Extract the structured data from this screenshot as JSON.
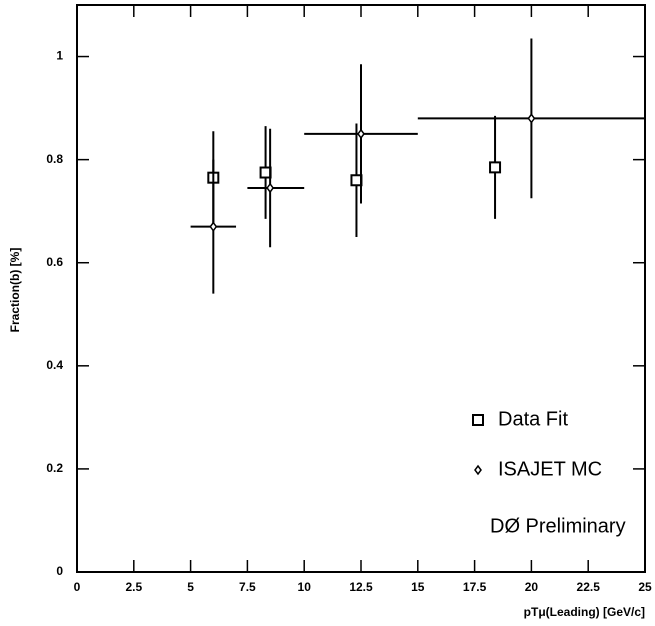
{
  "chart_data": {
    "type": "scatter",
    "xlabel": "pTμ(Leading) [GeV/c]",
    "ylabel": "Fraction(b) [%]",
    "annotation": "DØ Preliminary",
    "xlim": [
      0,
      25
    ],
    "xticks": [
      0,
      2.5,
      5,
      7.5,
      10,
      12.5,
      15,
      17.5,
      20,
      22.5,
      25
    ],
    "ylim": [
      0,
      1.1
    ],
    "yticks": [
      0,
      0.2,
      0.4,
      0.6,
      0.8,
      1
    ],
    "legend": "lower right",
    "series": [
      {
        "name": "Data Fit",
        "marker": "square",
        "color": "#000000",
        "x": [
          6,
          8.3,
          12.3,
          18.4
        ],
        "values": [
          0.765,
          0.775,
          0.76,
          0.785
        ],
        "errors": [
          0.09,
          0.09,
          0.11,
          0.1
        ]
      },
      {
        "name": "ISAJET MC",
        "marker": "diamond",
        "color": "#000000",
        "x": [
          6,
          8.5,
          12.5,
          20
        ],
        "x_low": [
          5,
          7.5,
          10,
          15
        ],
        "x_high": [
          7,
          10,
          15,
          25
        ],
        "values": [
          0.67,
          0.745,
          0.85,
          0.88
        ],
        "errors": [
          0.13,
          0.115,
          0.135,
          0.155
        ]
      }
    ]
  }
}
